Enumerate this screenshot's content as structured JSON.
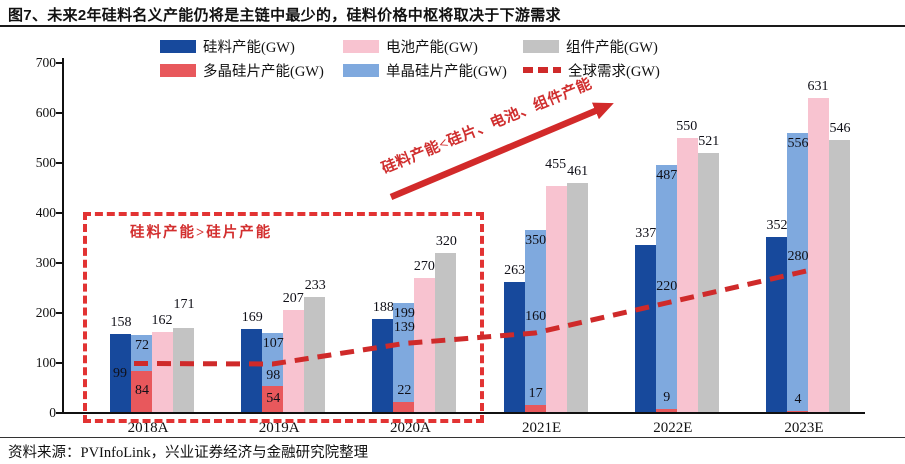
{
  "title": "图7、未来2年硅料名义产能仍将是主链中最少的，硅料价格中枢将取决于下游需求",
  "source": "资料来源：PVInfoLink，兴业证券经济与金融研究院整理",
  "colors": {
    "silicon": "#17499c",
    "poly_wafer": "#e8585c",
    "mono_wafer": "#7fa9de",
    "cell": "#f8c3d0",
    "module": "#c3c3c3",
    "demand_line": "#cf2a2a",
    "annotation_red": "#d32f2f"
  },
  "legend": [
    {
      "label": "硅料产能(GW)",
      "color": "#17499c",
      "swatch": "box"
    },
    {
      "label": "电池产能(GW)",
      "color": "#f8c3d0",
      "swatch": "box"
    },
    {
      "label": "组件产能(GW)",
      "color": "#c3c3c3",
      "swatch": "box"
    },
    {
      "label": "多晶硅片产能(GW)",
      "color": "#e8585c",
      "swatch": "box"
    },
    {
      "label": "单晶硅片产能(GW)",
      "color": "#7fa9de",
      "swatch": "box"
    },
    {
      "label": "全球需求(GW)",
      "color": "#cf2a2a",
      "swatch": "dashed-line"
    }
  ],
  "annotations": {
    "arrow_text": "硅料产能<硅片、电池、组件产能",
    "box_text": "硅料产能>硅片产能"
  },
  "chart_data": {
    "type": "bar",
    "categories": [
      "2018A",
      "2019A",
      "2020A",
      "2021E",
      "2022E",
      "2023E"
    ],
    "series": [
      {
        "name": "硅料产能(GW)",
        "type": "bar",
        "color": "#17499c",
        "values": [
          158,
          169,
          188,
          263,
          337,
          352
        ]
      },
      {
        "name": "多晶硅片产能(GW)",
        "type": "bar",
        "stack": "wafer",
        "color": "#e8585c",
        "values": [
          84,
          54,
          22,
          17,
          9,
          4
        ]
      },
      {
        "name": "单晶硅片产能(GW)",
        "type": "bar",
        "stack": "wafer",
        "color": "#7fa9de",
        "values": [
          72,
          107,
          199,
          350,
          487,
          556
        ]
      },
      {
        "name": "电池产能(GW)",
        "type": "bar",
        "color": "#f8c3d0",
        "values": [
          162,
          207,
          270,
          455,
          550,
          631
        ]
      },
      {
        "name": "组件产能(GW)",
        "type": "bar",
        "color": "#c3c3c3",
        "values": [
          171,
          233,
          320,
          461,
          521,
          546
        ]
      },
      {
        "name": "全球需求(GW)",
        "type": "dashed-line",
        "color": "#cf2a2a",
        "values": [
          99,
          98,
          139,
          160,
          220,
          280
        ]
      }
    ],
    "ylim": [
      0,
      700
    ],
    "yticks": [
      0,
      100,
      200,
      300,
      400,
      500,
      600,
      700
    ],
    "grid": false,
    "legend_position": "top"
  }
}
